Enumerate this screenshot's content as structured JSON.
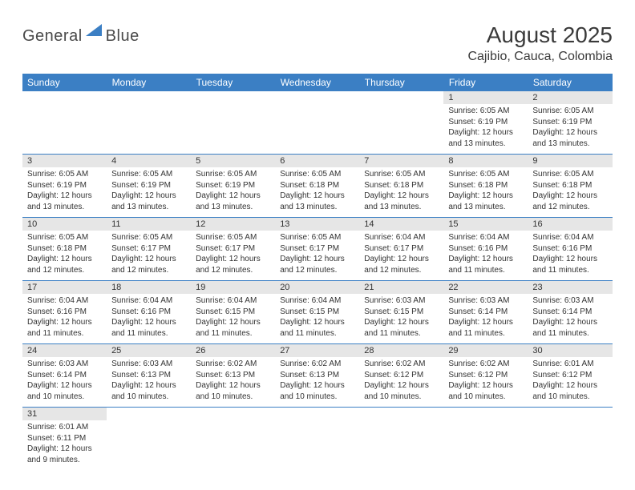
{
  "logo": {
    "text1": "General",
    "text2": "Blue"
  },
  "title": "August 2025",
  "location": "Cajibio, Cauca, Colombia",
  "header_bg": "#3b7fc4",
  "daynum_bg": "#e6e6e6",
  "divider_color": "#3b7fc4",
  "weekdays": [
    "Sunday",
    "Monday",
    "Tuesday",
    "Wednesday",
    "Thursday",
    "Friday",
    "Saturday"
  ],
  "weeks": [
    {
      "days": [
        null,
        null,
        null,
        null,
        null,
        {
          "n": "1",
          "sr": "6:05 AM",
          "ss": "6:19 PM",
          "dl": "12 hours and 13 minutes."
        },
        {
          "n": "2",
          "sr": "6:05 AM",
          "ss": "6:19 PM",
          "dl": "12 hours and 13 minutes."
        }
      ]
    },
    {
      "days": [
        {
          "n": "3",
          "sr": "6:05 AM",
          "ss": "6:19 PM",
          "dl": "12 hours and 13 minutes."
        },
        {
          "n": "4",
          "sr": "6:05 AM",
          "ss": "6:19 PM",
          "dl": "12 hours and 13 minutes."
        },
        {
          "n": "5",
          "sr": "6:05 AM",
          "ss": "6:19 PM",
          "dl": "12 hours and 13 minutes."
        },
        {
          "n": "6",
          "sr": "6:05 AM",
          "ss": "6:18 PM",
          "dl": "12 hours and 13 minutes."
        },
        {
          "n": "7",
          "sr": "6:05 AM",
          "ss": "6:18 PM",
          "dl": "12 hours and 13 minutes."
        },
        {
          "n": "8",
          "sr": "6:05 AM",
          "ss": "6:18 PM",
          "dl": "12 hours and 13 minutes."
        },
        {
          "n": "9",
          "sr": "6:05 AM",
          "ss": "6:18 PM",
          "dl": "12 hours and 12 minutes."
        }
      ]
    },
    {
      "days": [
        {
          "n": "10",
          "sr": "6:05 AM",
          "ss": "6:18 PM",
          "dl": "12 hours and 12 minutes."
        },
        {
          "n": "11",
          "sr": "6:05 AM",
          "ss": "6:17 PM",
          "dl": "12 hours and 12 minutes."
        },
        {
          "n": "12",
          "sr": "6:05 AM",
          "ss": "6:17 PM",
          "dl": "12 hours and 12 minutes."
        },
        {
          "n": "13",
          "sr": "6:05 AM",
          "ss": "6:17 PM",
          "dl": "12 hours and 12 minutes."
        },
        {
          "n": "14",
          "sr": "6:04 AM",
          "ss": "6:17 PM",
          "dl": "12 hours and 12 minutes."
        },
        {
          "n": "15",
          "sr": "6:04 AM",
          "ss": "6:16 PM",
          "dl": "12 hours and 11 minutes."
        },
        {
          "n": "16",
          "sr": "6:04 AM",
          "ss": "6:16 PM",
          "dl": "12 hours and 11 minutes."
        }
      ]
    },
    {
      "days": [
        {
          "n": "17",
          "sr": "6:04 AM",
          "ss": "6:16 PM",
          "dl": "12 hours and 11 minutes."
        },
        {
          "n": "18",
          "sr": "6:04 AM",
          "ss": "6:16 PM",
          "dl": "12 hours and 11 minutes."
        },
        {
          "n": "19",
          "sr": "6:04 AM",
          "ss": "6:15 PM",
          "dl": "12 hours and 11 minutes."
        },
        {
          "n": "20",
          "sr": "6:04 AM",
          "ss": "6:15 PM",
          "dl": "12 hours and 11 minutes."
        },
        {
          "n": "21",
          "sr": "6:03 AM",
          "ss": "6:15 PM",
          "dl": "12 hours and 11 minutes."
        },
        {
          "n": "22",
          "sr": "6:03 AM",
          "ss": "6:14 PM",
          "dl": "12 hours and 11 minutes."
        },
        {
          "n": "23",
          "sr": "6:03 AM",
          "ss": "6:14 PM",
          "dl": "12 hours and 11 minutes."
        }
      ]
    },
    {
      "days": [
        {
          "n": "24",
          "sr": "6:03 AM",
          "ss": "6:14 PM",
          "dl": "12 hours and 10 minutes."
        },
        {
          "n": "25",
          "sr": "6:03 AM",
          "ss": "6:13 PM",
          "dl": "12 hours and 10 minutes."
        },
        {
          "n": "26",
          "sr": "6:02 AM",
          "ss": "6:13 PM",
          "dl": "12 hours and 10 minutes."
        },
        {
          "n": "27",
          "sr": "6:02 AM",
          "ss": "6:13 PM",
          "dl": "12 hours and 10 minutes."
        },
        {
          "n": "28",
          "sr": "6:02 AM",
          "ss": "6:12 PM",
          "dl": "12 hours and 10 minutes."
        },
        {
          "n": "29",
          "sr": "6:02 AM",
          "ss": "6:12 PM",
          "dl": "12 hours and 10 minutes."
        },
        {
          "n": "30",
          "sr": "6:01 AM",
          "ss": "6:12 PM",
          "dl": "12 hours and 10 minutes."
        }
      ]
    },
    {
      "days": [
        {
          "n": "31",
          "sr": "6:01 AM",
          "ss": "6:11 PM",
          "dl": "12 hours and 9 minutes."
        },
        null,
        null,
        null,
        null,
        null,
        null
      ]
    }
  ],
  "labels": {
    "sunrise": "Sunrise:",
    "sunset": "Sunset:",
    "daylight": "Daylight:"
  }
}
